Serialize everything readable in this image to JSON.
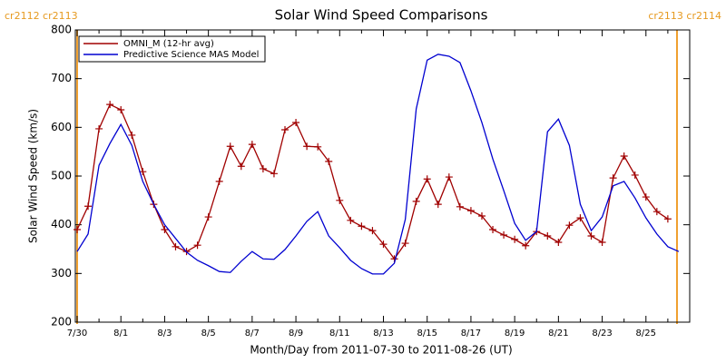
{
  "chart_data": {
    "type": "line",
    "title": "Solar Wind Speed Comparisons",
    "x_label": "Month/Day from 2011-07-30 to 2011-08-26 (UT)",
    "y_label": "Solar Wind Speed (km/s)",
    "annotations": [
      "cr2112 cr2113",
      "cr2113 cr2114"
    ],
    "categories": [
      "7/30",
      null,
      null,
      null,
      "8/1",
      null,
      null,
      null,
      "8/3",
      null,
      null,
      null,
      "8/5",
      null,
      null,
      null,
      "8/7",
      null,
      null,
      null,
      "8/9",
      null,
      null,
      null,
      "8/11",
      null,
      null,
      null,
      "8/13",
      null,
      null,
      null,
      "8/15",
      null,
      null,
      null,
      "8/17",
      null,
      null,
      null,
      "8/19",
      null,
      null,
      null,
      "8/21",
      null,
      null,
      null,
      "8/23",
      null,
      null,
      null,
      "8/25",
      null,
      null,
      null,
      null
    ],
    "ylim": [
      200,
      800
    ],
    "yticks": [
      200,
      300,
      400,
      500,
      600,
      700,
      800
    ],
    "legend": "upper left",
    "series": [
      {
        "name": "OMNI_M (12-hr avg)",
        "color": "#a00000",
        "marker": "plus",
        "values": [
          390,
          438,
          597,
          647,
          636,
          584,
          509,
          442,
          390,
          355,
          345,
          358,
          416,
          489,
          561,
          520,
          565,
          515,
          505,
          595,
          610,
          561,
          560,
          530,
          450,
          409,
          397,
          388,
          360,
          330,
          362,
          448,
          494,
          442,
          498,
          437,
          429,
          418,
          390,
          379,
          370,
          357,
          386,
          377,
          364,
          399,
          414,
          377,
          364,
          496,
          541,
          502,
          457,
          427,
          412,
          null,
          null
        ]
      },
      {
        "name": "Predictive Science MAS Model",
        "color": "#0000d0",
        "values": [
          345,
          381,
          522,
          567,
          606,
          563,
          489,
          442,
          400,
          372,
          344,
          327,
          316,
          304,
          302,
          325,
          345,
          330,
          329,
          349,
          377,
          407,
          427,
          377,
          353,
          327,
          310,
          299,
          299,
          321,
          411,
          638,
          738,
          750,
          746,
          733,
          675,
          610,
          535,
          470,
          403,
          368,
          386,
          591,
          617,
          563,
          442,
          388,
          416,
          480,
          489,
          455,
          414,
          381,
          355,
          345,
          null
        ]
      }
    ]
  }
}
